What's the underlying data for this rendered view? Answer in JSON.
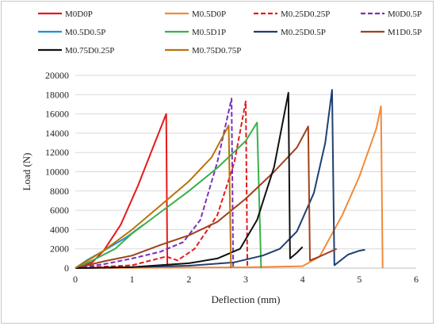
{
  "chart_data": {
    "type": "line",
    "title": "",
    "xlabel": "Deflection (mm)",
    "ylabel": "Load (N)",
    "xlim": [
      0,
      6
    ],
    "ylim": [
      0,
      20000
    ],
    "x_ticks": [
      "0",
      "1",
      "2",
      "3",
      "4",
      "5",
      "6"
    ],
    "y_ticks": [
      "0",
      "2000",
      "4000",
      "6000",
      "8000",
      "10000",
      "12000",
      "14000",
      "16000",
      "18000",
      "20000"
    ],
    "grid": "horizontal",
    "legend_position": "top",
    "series": [
      {
        "name": "M0D0P",
        "color": "#e8191a",
        "dash": "solid",
        "points": [
          [
            0,
            0
          ],
          [
            0.3,
            600
          ],
          [
            0.5,
            1800
          ],
          [
            0.8,
            4500
          ],
          [
            1.1,
            8500
          ],
          [
            1.4,
            13000
          ],
          [
            1.6,
            16000
          ],
          [
            1.62,
            0
          ]
        ]
      },
      {
        "name": "M0.5D0P",
        "color": "#f28a3a",
        "dash": "solid",
        "points": [
          [
            0,
            0
          ],
          [
            1,
            20
          ],
          [
            2,
            50
          ],
          [
            3,
            80
          ],
          [
            4,
            200
          ],
          [
            4.3,
            1200
          ],
          [
            4.7,
            5500
          ],
          [
            5.0,
            9500
          ],
          [
            5.3,
            14500
          ],
          [
            5.38,
            16800
          ],
          [
            5.41,
            0
          ]
        ]
      },
      {
        "name": "M0.25D0.25P",
        "color": "#e8191a",
        "dash": "dashed",
        "points": [
          [
            0,
            0
          ],
          [
            1,
            300
          ],
          [
            1.6,
            1200
          ],
          [
            1.8,
            800
          ],
          [
            2.1,
            2000
          ],
          [
            2.5,
            5500
          ],
          [
            2.8,
            11000
          ],
          [
            3.0,
            17300
          ],
          [
            3.03,
            0
          ]
        ]
      },
      {
        "name": "M0D0.5P",
        "color": "#7b2fbe",
        "dash": "dashed",
        "points": [
          [
            0,
            0
          ],
          [
            0.5,
            400
          ],
          [
            1.0,
            1000
          ],
          [
            1.5,
            1700
          ],
          [
            1.9,
            2700
          ],
          [
            2.2,
            5000
          ],
          [
            2.5,
            11000
          ],
          [
            2.75,
            17600
          ],
          [
            2.78,
            0
          ]
        ]
      },
      {
        "name": "M0.5D0.5P",
        "color": "#1e90d8",
        "dash": "solid",
        "points": [
          [
            0,
            0
          ],
          [
            0.2,
            800
          ],
          [
            0.5,
            1800
          ],
          [
            0.9,
            3200
          ],
          [
            1.2,
            4500
          ]
        ]
      },
      {
        "name": "M0.5D1P",
        "color": "#3ab04a",
        "dash": "solid",
        "points": [
          [
            0,
            0
          ],
          [
            0.3,
            800
          ],
          [
            0.7,
            2000
          ],
          [
            1.0,
            3600
          ],
          [
            1.5,
            5800
          ],
          [
            2.0,
            8000
          ],
          [
            2.5,
            10400
          ],
          [
            3.0,
            13200
          ],
          [
            3.2,
            15100
          ],
          [
            3.27,
            0
          ]
        ]
      },
      {
        "name": "M0.25D0.5P",
        "color": "#1f3f73",
        "dash": "solid",
        "points": [
          [
            0,
            0
          ],
          [
            1.0,
            100
          ],
          [
            2.0,
            250
          ],
          [
            2.8,
            600
          ],
          [
            3.3,
            1300
          ],
          [
            3.6,
            2000
          ],
          [
            3.9,
            3800
          ],
          [
            4.2,
            7800
          ],
          [
            4.4,
            13000
          ],
          [
            4.52,
            18500
          ],
          [
            4.56,
            300
          ],
          [
            4.8,
            1400
          ],
          [
            5.0,
            1800
          ],
          [
            5.1,
            1900
          ]
        ]
      },
      {
        "name": "M1D0.5P",
        "color": "#a0401c",
        "dash": "solid",
        "points": [
          [
            0,
            0
          ],
          [
            0.5,
            700
          ],
          [
            1.0,
            1300
          ],
          [
            1.5,
            2400
          ],
          [
            2.0,
            3400
          ],
          [
            2.5,
            4800
          ],
          [
            3.0,
            7200
          ],
          [
            3.5,
            10000
          ],
          [
            3.9,
            12500
          ],
          [
            4.1,
            14700
          ],
          [
            4.13,
            800
          ],
          [
            4.3,
            1200
          ],
          [
            4.6,
            2000
          ]
        ]
      },
      {
        "name": "M0.75D0.25P",
        "color": "#111111",
        "dash": "solid",
        "points": [
          [
            0,
            0
          ],
          [
            1.0,
            100
          ],
          [
            2.0,
            500
          ],
          [
            2.5,
            1000
          ],
          [
            2.9,
            2000
          ],
          [
            3.2,
            5000
          ],
          [
            3.5,
            10500
          ],
          [
            3.75,
            18200
          ],
          [
            3.78,
            1000
          ],
          [
            3.9,
            1600
          ],
          [
            4.0,
            2200
          ]
        ]
      },
      {
        "name": "M0.75D0.75P",
        "color": "#b8740a",
        "dash": "solid",
        "points": [
          [
            0,
            0
          ],
          [
            0.5,
            1800
          ],
          [
            1.0,
            4000
          ],
          [
            1.5,
            6500
          ],
          [
            2.0,
            9000
          ],
          [
            2.4,
            11500
          ],
          [
            2.7,
            14800
          ],
          [
            2.74,
            0
          ]
        ]
      }
    ]
  }
}
